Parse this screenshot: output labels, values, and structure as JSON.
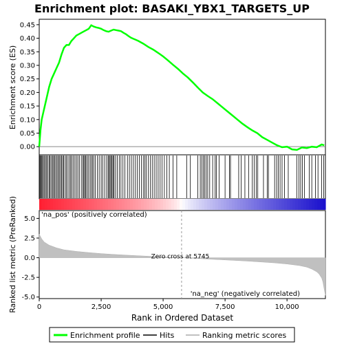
{
  "chart_data": {
    "type": "line",
    "title": "Enrichment plot: BASAKI_YBX1_TARGETS_UP",
    "top_panel": {
      "ylabel": "Enrichment score (ES)",
      "ylim": [
        -0.03,
        0.47
      ],
      "yticks": [
        "0.00",
        "0.05",
        "0.10",
        "0.15",
        "0.20",
        "0.25",
        "0.30",
        "0.35",
        "0.40",
        "0.45"
      ],
      "ytick_values": [
        0,
        0.05,
        0.1,
        0.15,
        0.2,
        0.25,
        0.3,
        0.35,
        0.4,
        0.45
      ],
      "series": [
        {
          "name": "Enrichment profile",
          "color": "#00ff00",
          "x": [
            0,
            50,
            100,
            150,
            200,
            300,
            400,
            500,
            600,
            700,
            800,
            900,
            1000,
            1100,
            1200,
            1300,
            1400,
            1500,
            1600,
            1700,
            1800,
            1900,
            2000,
            2100,
            2200,
            2300,
            2400,
            2500,
            2600,
            2700,
            2800,
            2900,
            3000,
            3100,
            3200,
            3300,
            3400,
            3500,
            3600,
            3700,
            3800,
            3900,
            4000,
            4200,
            4400,
            4600,
            4800,
            5000,
            5200,
            5400,
            5600,
            5800,
            6000,
            6200,
            6400,
            6600,
            6800,
            7000,
            7200,
            7400,
            7600,
            7800,
            8000,
            8200,
            8400,
            8600,
            8800,
            9000,
            9200,
            9400,
            9600,
            9800,
            10000,
            10200,
            10400,
            10600,
            10800,
            11000,
            11200,
            11400,
            11500
          ],
          "y": [
            0.0,
            0.06,
            0.1,
            0.12,
            0.14,
            0.18,
            0.22,
            0.25,
            0.27,
            0.29,
            0.31,
            0.34,
            0.365,
            0.375,
            0.375,
            0.39,
            0.4,
            0.41,
            0.415,
            0.42,
            0.425,
            0.43,
            0.435,
            0.448,
            0.443,
            0.44,
            0.438,
            0.435,
            0.43,
            0.426,
            0.424,
            0.428,
            0.432,
            0.43,
            0.428,
            0.426,
            0.42,
            0.415,
            0.408,
            0.402,
            0.398,
            0.394,
            0.39,
            0.38,
            0.368,
            0.358,
            0.346,
            0.333,
            0.318,
            0.302,
            0.287,
            0.27,
            0.255,
            0.237,
            0.218,
            0.2,
            0.187,
            0.175,
            0.16,
            0.145,
            0.13,
            0.115,
            0.1,
            0.085,
            0.072,
            0.06,
            0.05,
            0.035,
            0.025,
            0.015,
            0.005,
            -0.002,
            0.0,
            -0.01,
            -0.012,
            -0.003,
            -0.005,
            0.0,
            -0.002,
            0.008,
            0.005
          ]
        }
      ]
    },
    "hits": [
      5,
      30,
      60,
      90,
      130,
      170,
      210,
      260,
      300,
      350,
      400,
      440,
      490,
      540,
      580,
      620,
      670,
      720,
      770,
      810,
      860,
      900,
      950,
      990,
      1050,
      1100,
      1160,
      1220,
      1270,
      1320,
      1380,
      1440,
      1500,
      1560,
      1620,
      1700,
      1760,
      1800,
      1840,
      1880,
      1930,
      1980,
      2050,
      2100,
      2150,
      2200,
      2260,
      2350,
      2420,
      2500,
      2560,
      2640,
      2720,
      2780,
      2820,
      2860,
      2900,
      2940,
      2980,
      3020,
      3080,
      3150,
      3230,
      3300,
      3380,
      3460,
      3560,
      3640,
      3720,
      3800,
      3880,
      3960,
      4040,
      4120,
      4200,
      4260,
      4320,
      4400,
      4480,
      4560,
      4640,
      4720,
      4800,
      4880,
      4960,
      5050,
      5150,
      5250,
      5400,
      5550,
      5950,
      6100,
      6400,
      6500,
      6560,
      6620,
      6680,
      6740,
      6800,
      6880,
      7000,
      7100,
      7150,
      7260,
      7500,
      7680,
      7720,
      8050,
      8150,
      8300,
      8450,
      8600,
      8680,
      8760,
      8820,
      9050,
      9200,
      9250,
      9500,
      9580,
      9650,
      9720,
      9800,
      9900,
      10050,
      10400,
      10480,
      10550,
      10620,
      10700,
      10900,
      11000,
      11150,
      11250,
      11400,
      11480
    ],
    "bottom_panel": {
      "ylabel": "Ranked list metric (PreRanked)",
      "ylim": [
        -5.2,
        6.0
      ],
      "yticks": [
        "5.0",
        "2.5",
        "0.0",
        "-2.5",
        "-5.0"
      ],
      "ytick_values": [
        5,
        2.5,
        0,
        -2.5,
        -5
      ],
      "metric_x": [
        0,
        50,
        100,
        200,
        400,
        700,
        1000,
        1500,
        2000,
        2500,
        3000,
        3500,
        4000,
        4500,
        5000,
        5500,
        5745,
        6000,
        6500,
        7000,
        7500,
        8000,
        8500,
        9000,
        9500,
        10000,
        10500,
        10800,
        11000,
        11200,
        11300,
        11400,
        11450,
        11500,
        11550
      ],
      "metric_y": [
        3.0,
        2.7,
        2.4,
        2.0,
        1.6,
        1.25,
        1.0,
        0.8,
        0.65,
        0.52,
        0.42,
        0.33,
        0.25,
        0.17,
        0.1,
        0.03,
        0.0,
        -0.05,
        -0.12,
        -0.2,
        -0.28,
        -0.36,
        -0.45,
        -0.55,
        -0.66,
        -0.8,
        -1.0,
        -1.2,
        -1.45,
        -1.8,
        -2.1,
        -2.6,
        -3.1,
        -4.0,
        -4.8
      ],
      "zero_cross_label": "Zero cross at 5745",
      "zero_cross": 5745,
      "pos_label": "'na_pos' (positively correlated)",
      "neg_label": "'na_neg' (negatively correlated)",
      "pos_color": "#cc0000",
      "neg_color": "#0000cc"
    },
    "xlabel": "Rank in Ordered Dataset",
    "xlim": [
      0,
      11550
    ],
    "xticks": [
      "0",
      "2,500",
      "5,000",
      "7,500",
      "10,000"
    ],
    "xtick_values": [
      0,
      2500,
      5000,
      7500,
      10000
    ]
  },
  "legend": {
    "items": [
      {
        "label": "Enrichment profile",
        "color": "#00ff00"
      },
      {
        "label": "Hits",
        "color": "#000000"
      },
      {
        "label": "Ranking metric scores",
        "color": "#c0c0c0"
      }
    ]
  }
}
